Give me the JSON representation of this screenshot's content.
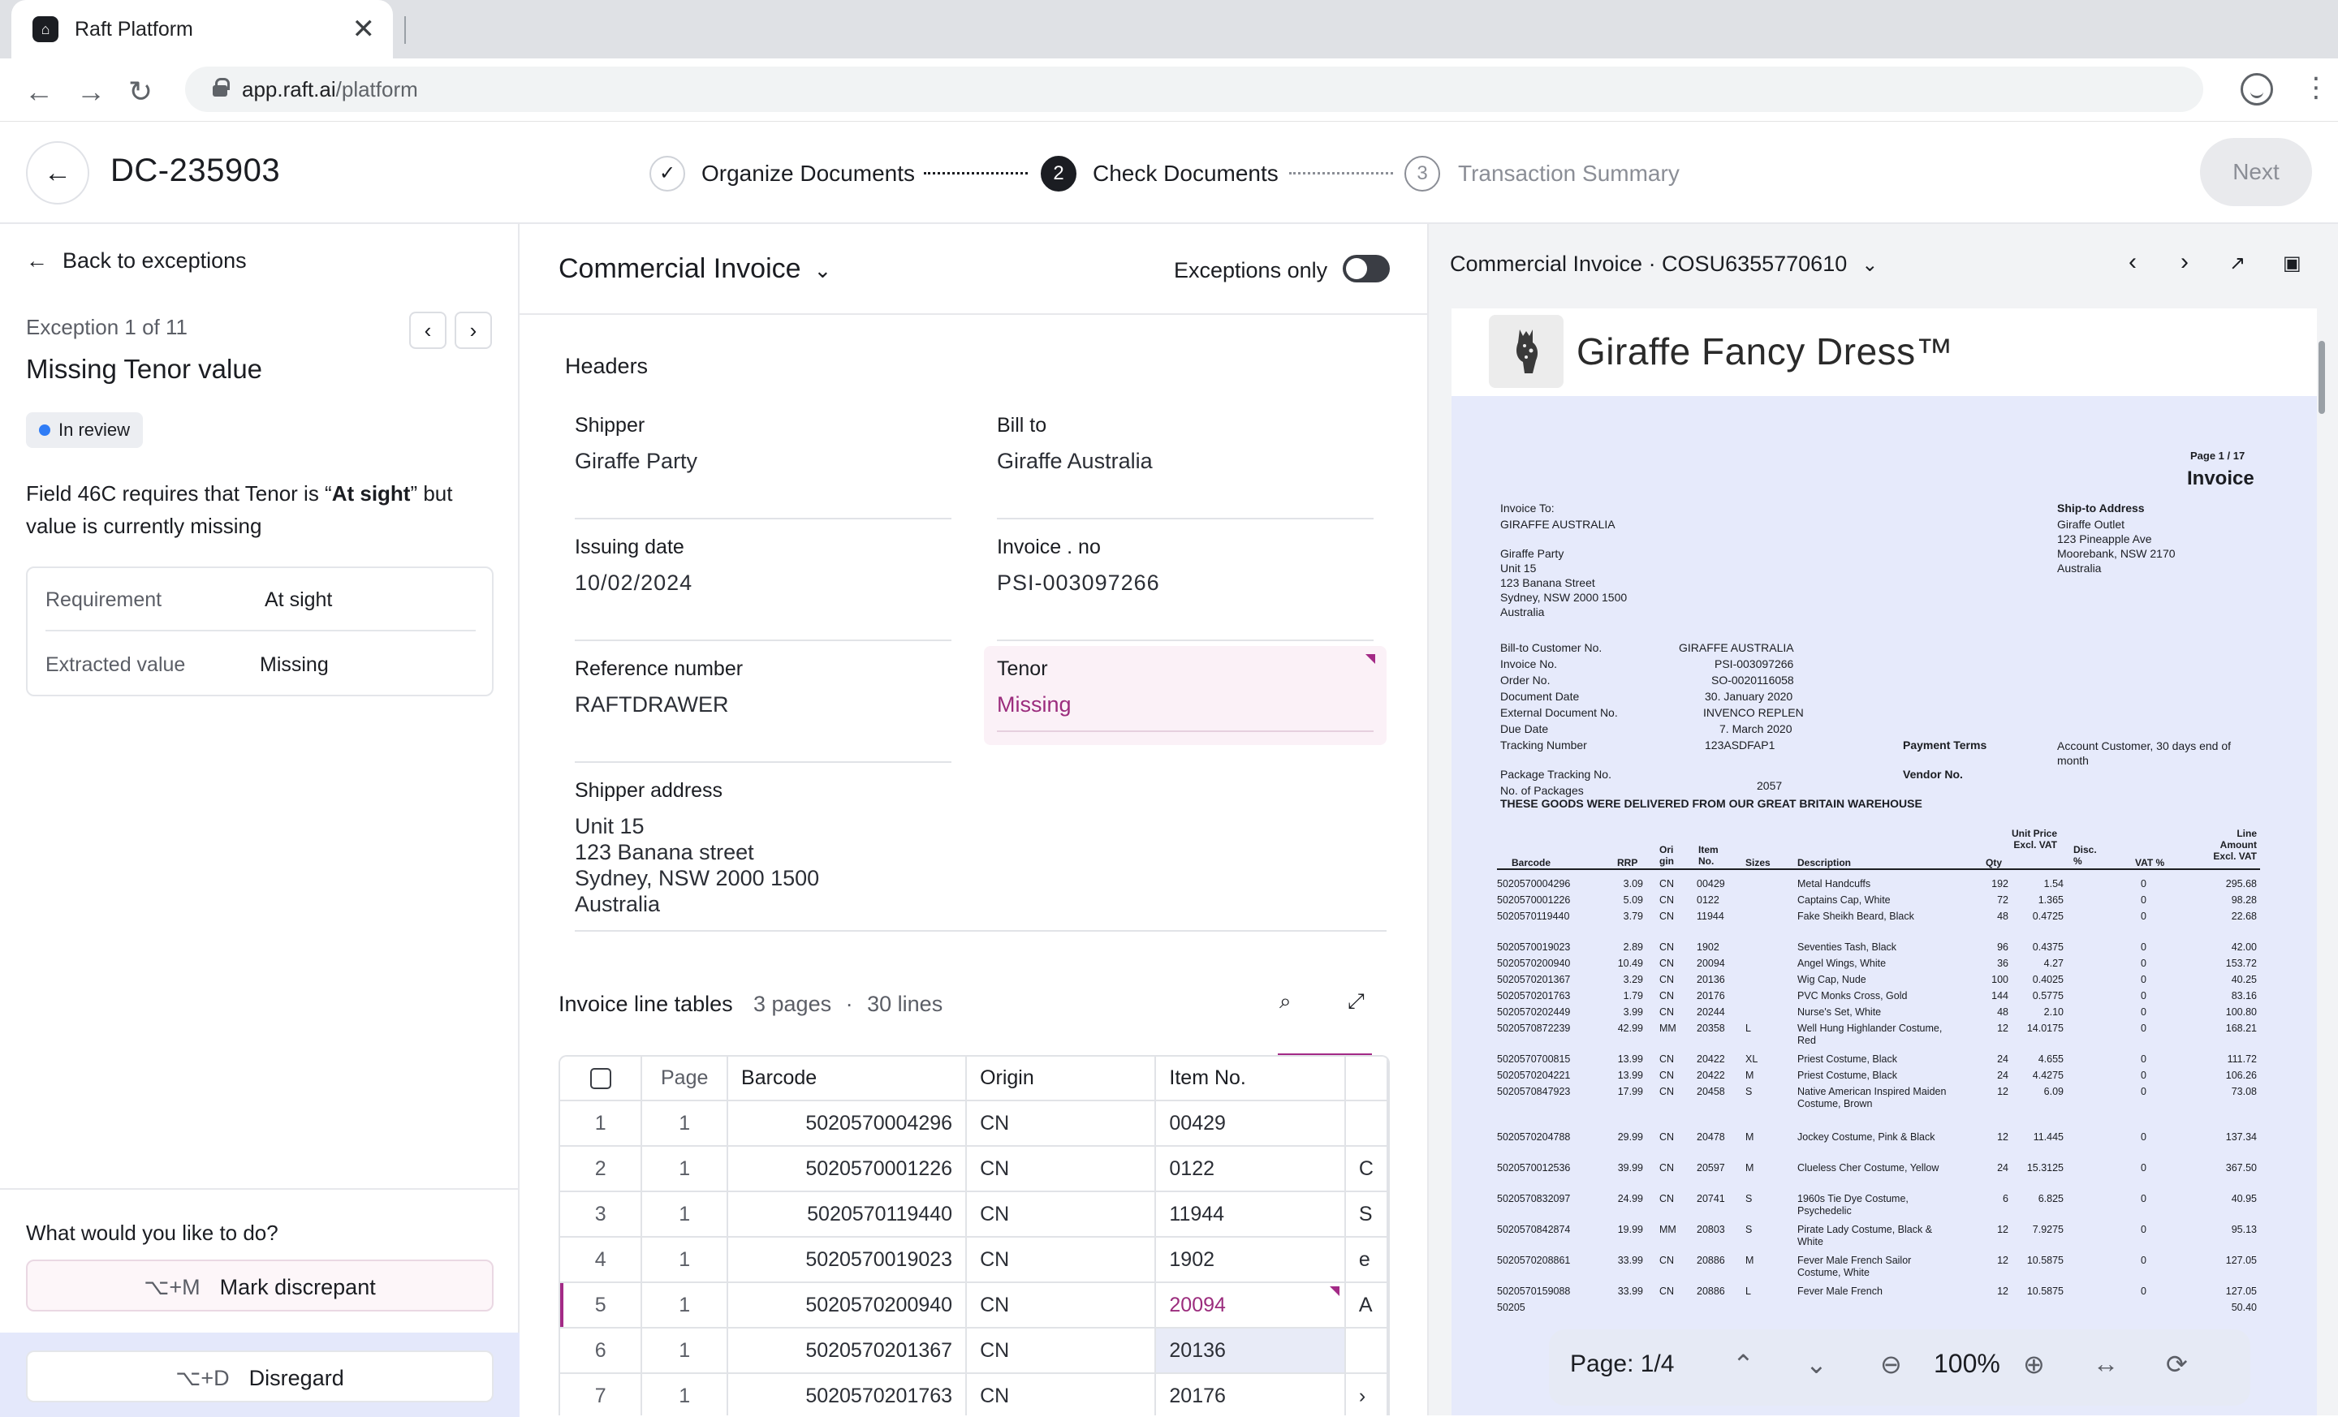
{
  "browser": {
    "tab_title": "Raft Platform",
    "tab_close": "✕",
    "url_host": "app.raft.ai",
    "url_path": "/platform"
  },
  "header": {
    "doc_id": "DC-235903",
    "steps": [
      {
        "num": "✓",
        "label": "Organize Documents"
      },
      {
        "num": "2",
        "label": "Check Documents"
      },
      {
        "num": "3",
        "label": "Transaction Summary"
      }
    ],
    "next_label": "Next"
  },
  "exception": {
    "back_label": "Back to exceptions",
    "count": "Exception 1 of 11",
    "title": "Missing Tenor value",
    "status": "In review",
    "desc_before": "Field 46C requires that Tenor is “",
    "desc_bold": "At sight",
    "desc_after": "” but value is currently missing",
    "requirement_label": "Requirement",
    "requirement_value": "At sight",
    "extracted_label": "Extracted value",
    "extracted_value": "Missing",
    "question": "What would you like to do?",
    "mark_kbd": "⌥+M",
    "mark_label": "Mark discrepant",
    "disregard_kbd": "⌥+D",
    "disregard_label": "Disregard"
  },
  "document": {
    "type": "Commercial Invoice",
    "exceptions_only_label": "Exceptions only",
    "headers_title": "Headers",
    "fields": {
      "shipper": {
        "label": "Shipper",
        "value": "Giraffe Party"
      },
      "bill_to": {
        "label": "Bill to",
        "value": "Giraffe Australia"
      },
      "issuing_date": {
        "label": "Issuing date",
        "value": "10/02/2024"
      },
      "invoice_no": {
        "label": "Invoice . no",
        "value": "PSI-003097266"
      },
      "reference": {
        "label": "Reference number",
        "value": "RAFTDRAWER"
      },
      "tenor": {
        "label": "Tenor",
        "value": "Missing"
      },
      "shipper_address": {
        "label": "Shipper address",
        "value": "Unit 15\n123 Banana street\nSydney, NSW 2000 1500\nAustralia"
      }
    },
    "line_tables": {
      "title": "Invoice line tables",
      "pages": "3 pages",
      "sep": "·",
      "lines": "30 lines",
      "columns": [
        "Page",
        "Barcode",
        "Origin",
        "Item No."
      ],
      "rows": [
        {
          "n": "1",
          "page": "1",
          "barcode": "5020570004296",
          "origin": "CN",
          "item": "00429",
          "extra": ""
        },
        {
          "n": "2",
          "page": "1",
          "barcode": "5020570001226",
          "origin": "CN",
          "item": "0122",
          "extra": "C"
        },
        {
          "n": "3",
          "page": "1",
          "barcode": "5020570119440",
          "origin": "CN",
          "item": "11944",
          "extra": "S"
        },
        {
          "n": "4",
          "page": "1",
          "barcode": "5020570019023",
          "origin": "CN",
          "item": "1902",
          "extra": "e"
        },
        {
          "n": "5",
          "page": "1",
          "barcode": "5020570200940",
          "origin": "CN",
          "item": "20094",
          "extra": "A"
        },
        {
          "n": "6",
          "page": "1",
          "barcode": "5020570201367",
          "origin": "CN",
          "item": "20136",
          "extra": ""
        },
        {
          "n": "7",
          "page": "1",
          "barcode": "5020570201763",
          "origin": "CN",
          "item": "20176",
          "extra": "›"
        }
      ]
    }
  },
  "preview": {
    "title": "Commercial Invoice · COSU6355770610",
    "brand": "Giraffe Fancy Dress™",
    "page_indicator": "Page: 1/4",
    "zoom": "100%",
    "invoice": {
      "page_label": "Page 1 / 17",
      "heading": "Invoice",
      "invoice_to_label": "Invoice To:",
      "invoice_to": "GIRAFFE AUSTRALIA",
      "ship_to_label": "Ship-to Address",
      "ship_to": [
        "Giraffe Outlet",
        "123 Pineapple Ave",
        "Moorebank, NSW 2170",
        "Australia"
      ],
      "from": [
        "Giraffe Party",
        "Unit 15",
        "123 Banana Street",
        "Sydney, NSW 2000 1500",
        "Australia"
      ],
      "meta": [
        [
          "Bill-to Customer No.",
          "GIRAFFE AUSTRALIA"
        ],
        [
          "Invoice No.",
          "PSI-003097266"
        ],
        [
          "Order No.",
          "SO-0020116058"
        ],
        [
          "Document Date",
          "30. January 2020"
        ],
        [
          "External Document No.",
          "INVENCO REPLEN"
        ],
        [
          "Due Date",
          "7. March 2020"
        ],
        [
          "Tracking Number",
          "123ASDFAP1"
        ]
      ],
      "payment_terms_label": "Payment Terms",
      "payment_terms": "Account Customer, 30 days end of month",
      "vendor_no_label": "Vendor No.",
      "package_tracking_label": "Package Tracking No.",
      "packages_label": "No. of Packages",
      "packages": "2057",
      "notice": "THESE GOODS WERE DELIVERED FROM OUR GREAT BRITAIN WAREHOUSE",
      "col_headers": [
        "Barcode",
        "RRP",
        "Ori gin",
        "Item No.",
        "Sizes",
        "Description",
        "Qty",
        "Unit Price Excl. VAT",
        "Disc. %",
        "VAT %",
        "Line Amount Excl. VAT"
      ],
      "lines": [
        [
          "5020570004296",
          "3.09",
          "CN",
          "00429",
          "",
          "Metal Handcuffs",
          "192",
          "1.54",
          "0",
          "295.68"
        ],
        [
          "5020570001226",
          "5.09",
          "CN",
          "0122",
          "",
          "Captains Cap, White",
          "72",
          "1.365",
          "0",
          "98.28"
        ],
        [
          "5020570119440",
          "3.79",
          "CN",
          "11944",
          "",
          "Fake Sheikh Beard, Black",
          "48",
          "0.4725",
          "0",
          "22.68"
        ],
        [
          "5020570019023",
          "2.89",
          "CN",
          "1902",
          "",
          "Seventies Tash, Black",
          "96",
          "0.4375",
          "0",
          "42.00"
        ],
        [
          "5020570200940",
          "10.49",
          "CN",
          "20094",
          "",
          "Angel Wings, White",
          "36",
          "4.27",
          "0",
          "153.72"
        ],
        [
          "5020570201367",
          "3.29",
          "CN",
          "20136",
          "",
          "Wig Cap, Nude",
          "100",
          "0.4025",
          "0",
          "40.25"
        ],
        [
          "5020570201763",
          "1.79",
          "CN",
          "20176",
          "",
          "PVC Monks Cross, Gold",
          "144",
          "0.5775",
          "0",
          "83.16"
        ],
        [
          "5020570202449",
          "3.99",
          "CN",
          "20244",
          "",
          "Nurse's Set, White",
          "48",
          "2.10",
          "0",
          "100.80"
        ],
        [
          "5020570872239",
          "42.99",
          "MM",
          "20358",
          "L",
          "Well Hung Highlander Costume, Red",
          "12",
          "14.0175",
          "0",
          "168.21"
        ],
        [
          "5020570700815",
          "13.99",
          "CN",
          "20422",
          "XL",
          "Priest Costume, Black",
          "24",
          "4.655",
          "0",
          "111.72"
        ],
        [
          "5020570204221",
          "13.99",
          "CN",
          "20422",
          "M",
          "Priest Costume, Black",
          "24",
          "4.4275",
          "0",
          "106.26"
        ],
        [
          "5020570847923",
          "17.99",
          "CN",
          "20458",
          "S",
          "Native American Inspired Maiden Costume, Brown",
          "12",
          "6.09",
          "0",
          "73.08"
        ],
        [
          "5020570204788",
          "29.99",
          "CN",
          "20478",
          "M",
          "Jockey Costume, Pink & Black",
          "12",
          "11.445",
          "0",
          "137.34"
        ],
        [
          "5020570012536",
          "39.99",
          "CN",
          "20597",
          "M",
          "Clueless Cher Costume, Yellow",
          "24",
          "15.3125",
          "0",
          "367.50"
        ],
        [
          "5020570832097",
          "24.99",
          "CN",
          "20741",
          "S",
          "1960s Tie Dye Costume, Psychedelic",
          "6",
          "6.825",
          "0",
          "40.95"
        ],
        [
          "5020570842874",
          "19.99",
          "MM",
          "20803",
          "S",
          "Pirate Lady Costume, Black & White",
          "12",
          "7.9275",
          "0",
          "95.13"
        ],
        [
          "5020570208861",
          "33.99",
          "CN",
          "20886",
          "M",
          "Fever Male French Sailor Costume, White",
          "12",
          "10.5875",
          "0",
          "127.05"
        ],
        [
          "5020570159088",
          "33.99",
          "CN",
          "20886",
          "L",
          "Fever Male French",
          "12",
          "10.5875",
          "0",
          "127.05"
        ],
        [
          "50205",
          "",
          "",
          "",
          "",
          "",
          "",
          "",
          "",
          "50.40"
        ]
      ]
    }
  }
}
